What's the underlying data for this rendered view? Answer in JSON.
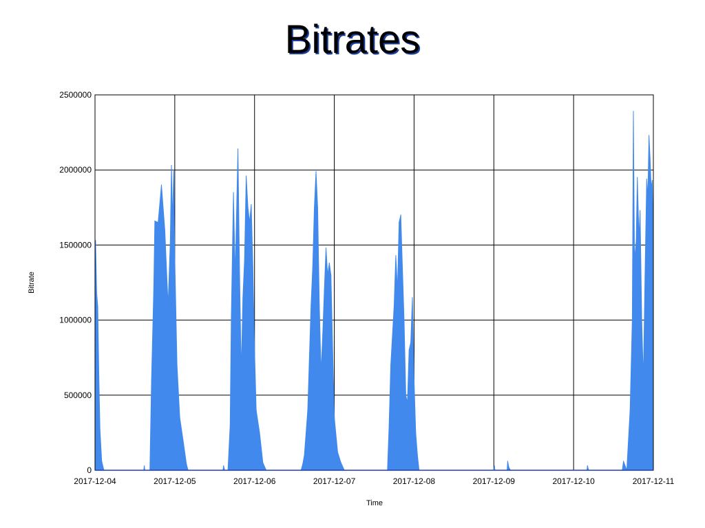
{
  "chart_data": {
    "type": "area",
    "title": "Bitrates",
    "xlabel": "Time",
    "ylabel": "Bitrate",
    "x_ticks": [
      "2017-12-04",
      "2017-12-05",
      "2017-12-06",
      "2017-12-07",
      "2017-12-08",
      "2017-12-09",
      "2017-12-10",
      "2017-12-11"
    ],
    "y_ticks": [
      "0",
      "500000",
      "1000000",
      "1500000",
      "2000000",
      "2500000"
    ],
    "xlim": [
      "2017-12-04",
      "2017-12-11"
    ],
    "ylim": [
      0,
      2500000
    ],
    "grid": true,
    "series_color": "#4189ec",
    "series": [
      {
        "points": [
          [
            "2017-12-04 00:00",
            1450000
          ],
          [
            "2017-12-04 00:10",
            1530000
          ],
          [
            "2017-12-04 00:30",
            1180000
          ],
          [
            "2017-12-04 00:50",
            1090000
          ],
          [
            "2017-12-04 01:10",
            620000
          ],
          [
            "2017-12-04 01:30",
            270000
          ],
          [
            "2017-12-04 02:00",
            60000
          ],
          [
            "2017-12-04 02:40",
            0
          ],
          [
            "2017-12-04 14:40",
            0
          ],
          [
            "2017-12-04 14:50",
            30000
          ],
          [
            "2017-12-04 15:00",
            0
          ],
          [
            "2017-12-04 16:30",
            0
          ],
          [
            "2017-12-04 17:00",
            600000
          ],
          [
            "2017-12-04 17:40",
            1200000
          ],
          [
            "2017-12-04 18:00",
            1660000
          ],
          [
            "2017-12-04 19:00",
            1650000
          ],
          [
            "2017-12-04 20:00",
            1900000
          ],
          [
            "2017-12-04 21:00",
            1600000
          ],
          [
            "2017-12-04 21:40",
            1260000
          ],
          [
            "2017-12-04 22:00",
            1100000
          ],
          [
            "2017-12-04 22:40",
            1530000
          ],
          [
            "2017-12-04 23:00",
            2030000
          ],
          [
            "2017-12-04 23:20",
            1650000
          ],
          [
            "2017-12-04 23:40",
            2000000
          ],
          [
            "2017-12-05 00:00",
            1400000
          ],
          [
            "2017-12-05 00:40",
            700000
          ],
          [
            "2017-12-05 01:30",
            350000
          ],
          [
            "2017-12-05 02:30",
            200000
          ],
          [
            "2017-12-05 03:30",
            40000
          ],
          [
            "2017-12-05 04:00",
            0
          ],
          [
            "2017-12-05 14:30",
            0
          ],
          [
            "2017-12-05 14:40",
            30000
          ],
          [
            "2017-12-05 15:00",
            0
          ],
          [
            "2017-12-05 16:00",
            0
          ],
          [
            "2017-12-05 16:40",
            300000
          ],
          [
            "2017-12-05 17:00",
            1000000
          ],
          [
            "2017-12-05 17:40",
            1850000
          ],
          [
            "2017-12-05 18:10",
            1300000
          ],
          [
            "2017-12-05 18:40",
            1800000
          ],
          [
            "2017-12-05 19:00",
            2140000
          ],
          [
            "2017-12-05 19:30",
            1300000
          ],
          [
            "2017-12-05 20:00",
            650000
          ],
          [
            "2017-12-05 20:30",
            1150000
          ],
          [
            "2017-12-05 21:00",
            1400000
          ],
          [
            "2017-12-05 21:30",
            1960000
          ],
          [
            "2017-12-05 22:00",
            1750000
          ],
          [
            "2017-12-05 22:30",
            1650000
          ],
          [
            "2017-12-05 23:00",
            1770000
          ],
          [
            "2017-12-05 23:30",
            1350000
          ],
          [
            "2017-12-06 00:00",
            800000
          ],
          [
            "2017-12-06 00:30",
            400000
          ],
          [
            "2017-12-06 01:30",
            250000
          ],
          [
            "2017-12-06 02:30",
            50000
          ],
          [
            "2017-12-06 03:30",
            0
          ],
          [
            "2017-12-06 14:00",
            0
          ],
          [
            "2017-12-06 14:30",
            40000
          ],
          [
            "2017-12-06 15:00",
            100000
          ],
          [
            "2017-12-06 16:00",
            400000
          ],
          [
            "2017-12-06 17:00",
            1100000
          ],
          [
            "2017-12-06 17:30",
            1350000
          ],
          [
            "2017-12-06 18:00",
            1750000
          ],
          [
            "2017-12-06 18:30",
            1990000
          ],
          [
            "2017-12-06 19:00",
            1750000
          ],
          [
            "2017-12-06 19:30",
            1100000
          ],
          [
            "2017-12-06 20:00",
            650000
          ],
          [
            "2017-12-06 20:30",
            900000
          ],
          [
            "2017-12-06 21:00",
            1200000
          ],
          [
            "2017-12-06 21:30",
            1480000
          ],
          [
            "2017-12-06 22:00",
            1300000
          ],
          [
            "2017-12-06 22:30",
            1380000
          ],
          [
            "2017-12-06 23:00",
            1300000
          ],
          [
            "2017-12-06 23:30",
            800000
          ],
          [
            "2017-12-07 00:00",
            350000
          ],
          [
            "2017-12-07 01:00",
            120000
          ],
          [
            "2017-12-07 02:00",
            50000
          ],
          [
            "2017-12-07 03:00",
            0
          ],
          [
            "2017-12-07 16:00",
            0
          ],
          [
            "2017-12-07 16:30",
            300000
          ],
          [
            "2017-12-07 17:00",
            700000
          ],
          [
            "2017-12-07 18:00",
            1100000
          ],
          [
            "2017-12-07 18:30",
            1430000
          ],
          [
            "2017-12-07 19:00",
            1200000
          ],
          [
            "2017-12-07 19:30",
            1650000
          ],
          [
            "2017-12-07 20:00",
            1700000
          ],
          [
            "2017-12-07 20:30",
            1350000
          ],
          [
            "2017-12-07 21:00",
            1000000
          ],
          [
            "2017-12-07 21:30",
            500000
          ],
          [
            "2017-12-07 22:00",
            450000
          ],
          [
            "2017-12-07 22:30",
            800000
          ],
          [
            "2017-12-07 23:00",
            850000
          ],
          [
            "2017-12-07 23:30",
            1150000
          ],
          [
            "2017-12-08 00:00",
            600000
          ],
          [
            "2017-12-08 00:30",
            250000
          ],
          [
            "2017-12-08 01:00",
            100000
          ],
          [
            "2017-12-08 01:30",
            0
          ],
          [
            "2017-12-09 00:00",
            0
          ],
          [
            "2017-12-09 00:10",
            30000
          ],
          [
            "2017-12-09 00:20",
            0
          ],
          [
            "2017-12-09 04:00",
            0
          ],
          [
            "2017-12-09 04:10",
            60000
          ],
          [
            "2017-12-09 04:30",
            20000
          ],
          [
            "2017-12-09 05:00",
            0
          ],
          [
            "2017-12-10 04:00",
            0
          ],
          [
            "2017-12-10 04:10",
            30000
          ],
          [
            "2017-12-10 04:30",
            0
          ],
          [
            "2017-12-10 14:40",
            0
          ],
          [
            "2017-12-10 15:00",
            60000
          ],
          [
            "2017-12-10 16:00",
            0
          ],
          [
            "2017-12-10 17:00",
            400000
          ],
          [
            "2017-12-10 17:40",
            1000000
          ],
          [
            "2017-12-10 18:00",
            2390000
          ],
          [
            "2017-12-10 18:20",
            1400000
          ],
          [
            "2017-12-10 18:50",
            1530000
          ],
          [
            "2017-12-10 19:10",
            1950000
          ],
          [
            "2017-12-10 19:40",
            1550000
          ],
          [
            "2017-12-10 20:00",
            1730000
          ],
          [
            "2017-12-10 20:30",
            1000000
          ],
          [
            "2017-12-10 21:00",
            600000
          ],
          [
            "2017-12-10 21:30",
            1300000
          ],
          [
            "2017-12-10 22:00",
            1940000
          ],
          [
            "2017-12-10 22:20",
            1820000
          ],
          [
            "2017-12-10 22:40",
            2230000
          ],
          [
            "2017-12-10 23:00",
            2080000
          ],
          [
            "2017-12-10 23:20",
            1880000
          ],
          [
            "2017-12-10 23:40",
            1930000
          ],
          [
            "2017-12-11 00:00",
            1500000
          ]
        ]
      }
    ]
  }
}
